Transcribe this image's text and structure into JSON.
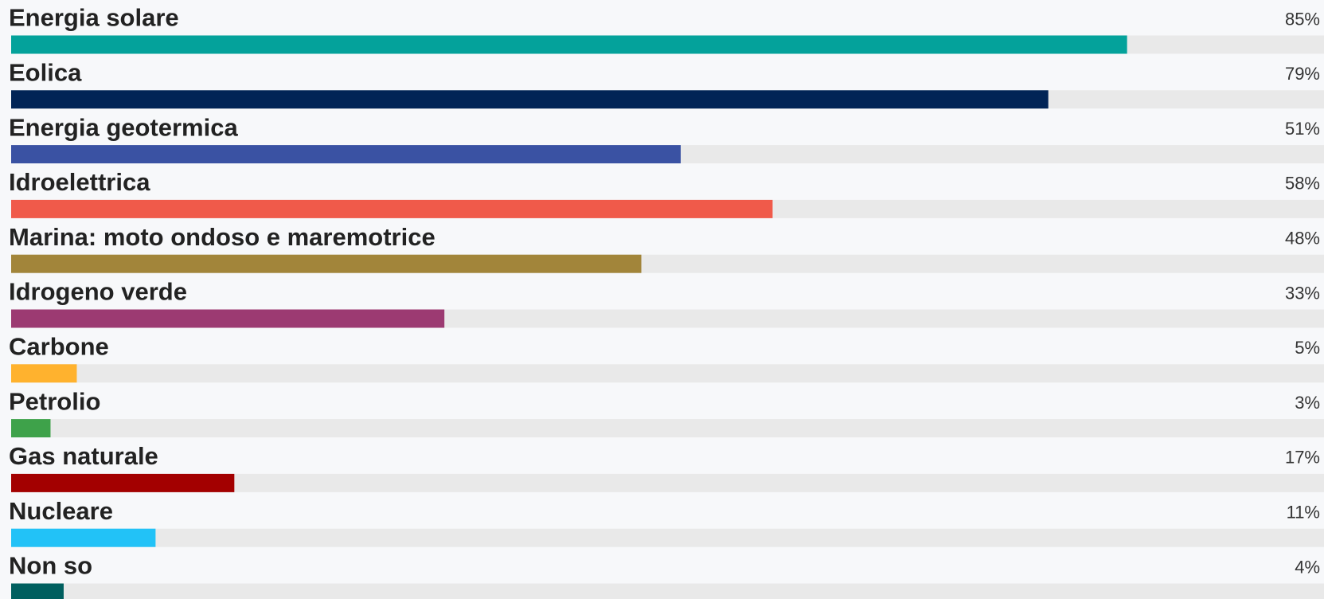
{
  "chart_data": {
    "type": "bar",
    "orientation": "horizontal",
    "categories": [
      "Energia solare",
      "Eolica",
      "Energia geotermica",
      "Idroelettrica",
      "Marina: moto ondoso e maremotrice",
      "Idrogeno verde",
      "Carbone",
      "Petrolio",
      "Gas naturale",
      "Nucleare",
      "Non so"
    ],
    "values": [
      85,
      79,
      51,
      58,
      48,
      33,
      5,
      3,
      17,
      11,
      4
    ],
    "value_labels": [
      "85%",
      "79%",
      "51%",
      "58%",
      "48%",
      "33%",
      "5%",
      "3%",
      "17%",
      "11%",
      "4%"
    ],
    "colors": [
      "#04a29b",
      "#012456",
      "#3a52a3",
      "#f05a4a",
      "#a2853a",
      "#9c3a72",
      "#ffb22e",
      "#3ea24a",
      "#a30000",
      "#22c2f7",
      "#005f5f"
    ],
    "xlim": [
      0,
      100
    ]
  }
}
